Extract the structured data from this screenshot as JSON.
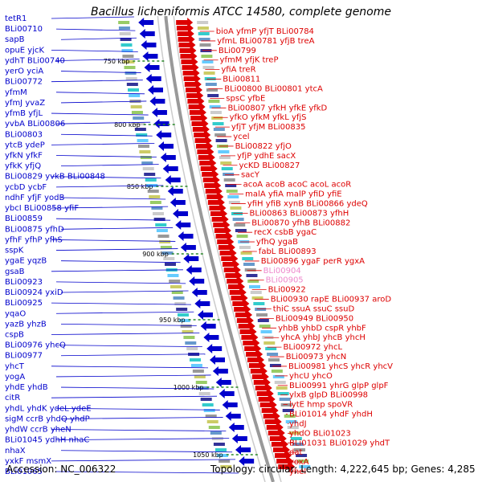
{
  "title": "Bacillus licheniformis ATCC 14580, complete genome",
  "footer": {
    "accession": "Accession: NC_006322",
    "topology": "Topology: circular; Length: 4,222,645 bp; Genes: 4,285"
  },
  "colors": {
    "forward": "#0000cc",
    "reverse": "#dd0000",
    "highlight": "#ee88cc",
    "backbone": "#999999"
  },
  "kbp_ticks": [
    "750 kbp",
    "800 kbp",
    "850 kbp",
    "900 kbp",
    "950 kbp",
    "1000 kbp",
    "1050 kbp"
  ],
  "left_labels": [
    [
      "tetR1"
    ],
    [
      "BLi00710"
    ],
    [
      "sapB"
    ],
    [
      "opuE",
      "yjcK"
    ],
    [
      "ydhT",
      "BLi00740"
    ],
    [
      "yerO",
      "yciA"
    ],
    [
      "BLi00772"
    ],
    [
      "yfmM"
    ],
    [
      "yfmJ",
      "yvaZ"
    ],
    [
      "yfmB",
      "yfjL"
    ],
    [
      "yvbA",
      "BLi00806"
    ],
    [
      "BLi00803"
    ],
    [
      "ytcB",
      "ydeP"
    ],
    [
      "yfkN",
      "yfkF"
    ],
    [
      "yfkK",
      "yfjQ"
    ],
    [
      "BLi00829",
      "yvkB",
      "BLi00848"
    ],
    [
      "ycbD",
      "ycbF"
    ],
    [
      "ndhF",
      "yfjF",
      "yodB"
    ],
    [
      "ybcI",
      "BLi00858",
      "yfiF"
    ],
    [
      "BLi00859"
    ],
    [
      "BLi00875",
      "yfhD"
    ],
    [
      "yfhF",
      "yfhP",
      "yfhS"
    ],
    [
      "sspK"
    ],
    [
      "ygaE",
      "yqzB"
    ],
    [
      "gsaB"
    ],
    [
      "BLi00923"
    ],
    [
      "BLi00924",
      "yxiD"
    ],
    [
      "BLi00925"
    ],
    [
      "yqaO"
    ],
    [
      "yazB",
      "yhzB"
    ],
    [
      "cspB"
    ],
    [
      "BLi00976",
      "yhcQ"
    ],
    [
      "BLi00977"
    ],
    [
      "yhcT"
    ],
    [
      "yogA"
    ],
    [
      "yhdE",
      "yhdB"
    ],
    [
      "citR"
    ],
    [
      "yhdL",
      "yhdK",
      "ydeL",
      "ydeE"
    ],
    [
      "sigM",
      "ccrB",
      "yhdQ",
      "yhdP"
    ],
    [
      "yhdW",
      "ccrB",
      "yheN"
    ],
    [
      "BLi01045",
      "ydhH",
      "nhaC"
    ],
    [
      "nhaX"
    ],
    [
      "yxkF",
      "msmX"
    ],
    [
      "BLi01065"
    ]
  ],
  "right_labels": [
    [
      "bioA",
      "yfmP",
      "yfjT",
      "BLi00784"
    ],
    [
      "yfmL",
      "BLi00781",
      "yfjB",
      "treA"
    ],
    [
      "BLi00799"
    ],
    [
      "yfmM",
      "yfjK",
      "treP"
    ],
    [
      "yfiA",
      "treR"
    ],
    [
      "BLi00811"
    ],
    [
      "BLi00800",
      "BLi00801",
      "ytcA"
    ],
    [
      "spsC",
      "yfbE"
    ],
    [
      "BLi00807",
      "yfkH",
      "yfkE",
      "yfkD"
    ],
    [
      "yfkO",
      "yfkM",
      "yfkL",
      "yfjS"
    ],
    [
      "yfjT",
      "yfjM",
      "BLi00835"
    ],
    [
      "ycel"
    ],
    [
      "BLi00822",
      "yfjO"
    ],
    [
      "yfjP",
      "ydhE",
      "sacX"
    ],
    [
      "ycKD",
      "BLi00827"
    ],
    [
      "sacY"
    ],
    [
      "acoA",
      "acoB",
      "acoC",
      "acoL",
      "acoR"
    ],
    [
      "malA",
      "yfiA",
      "malP",
      "yfiD",
      "yfiE"
    ],
    [
      "yfiH",
      "yfiB",
      "xynB",
      "BLi00866",
      "ydeQ"
    ],
    [
      "BLi00863",
      "BLi00873",
      "yfhH"
    ],
    [
      "BLi00870",
      "yfhB",
      "BLi00882"
    ],
    [
      "recX",
      "csbB",
      "ygaC"
    ],
    [
      "yfhQ",
      "ygaB"
    ],
    [
      "fabL",
      "BLi00893"
    ],
    [
      "BLi00896",
      "ygaF",
      "perR",
      "ygxA"
    ],
    [
      "BLi00904"
    ],
    [
      "BLi00905"
    ],
    [
      "BLi00922"
    ],
    [
      "BLi00930",
      "rapE",
      "BLi00937",
      "aroD"
    ],
    [
      "thiC",
      "ssuA",
      "ssuC",
      "ssuD"
    ],
    [
      "BLi00949",
      "BLi00950"
    ],
    [
      "yhbB",
      "yhbD",
      "cspR",
      "yhbF"
    ],
    [
      "yhcA",
      "yhbJ",
      "yhcB",
      "yhcH"
    ],
    [
      "BLi00972",
      "yhcL"
    ],
    [
      "BLi00973",
      "yhcN"
    ],
    [
      "BLi00981",
      "yhcS",
      "yhcR",
      "yhcV"
    ],
    [
      "yhcU",
      "yhcO"
    ],
    [
      "BLi00991",
      "yhrG",
      "glpP",
      "glpF"
    ],
    [
      "ylxB",
      "glpD",
      "BLi00998"
    ],
    [
      "lytE",
      "hmp",
      "spoVR"
    ],
    [
      "BLi01014",
      "yhdF",
      "yhdH"
    ],
    [
      "yhdJ"
    ],
    [
      "yhdO",
      "BLi01023"
    ],
    [
      "BLi01031",
      "BLi01029",
      "yhdT"
    ],
    [
      "dat"
    ],
    [
      "yoxA"
    ],
    [
      "yhel"
    ]
  ]
}
